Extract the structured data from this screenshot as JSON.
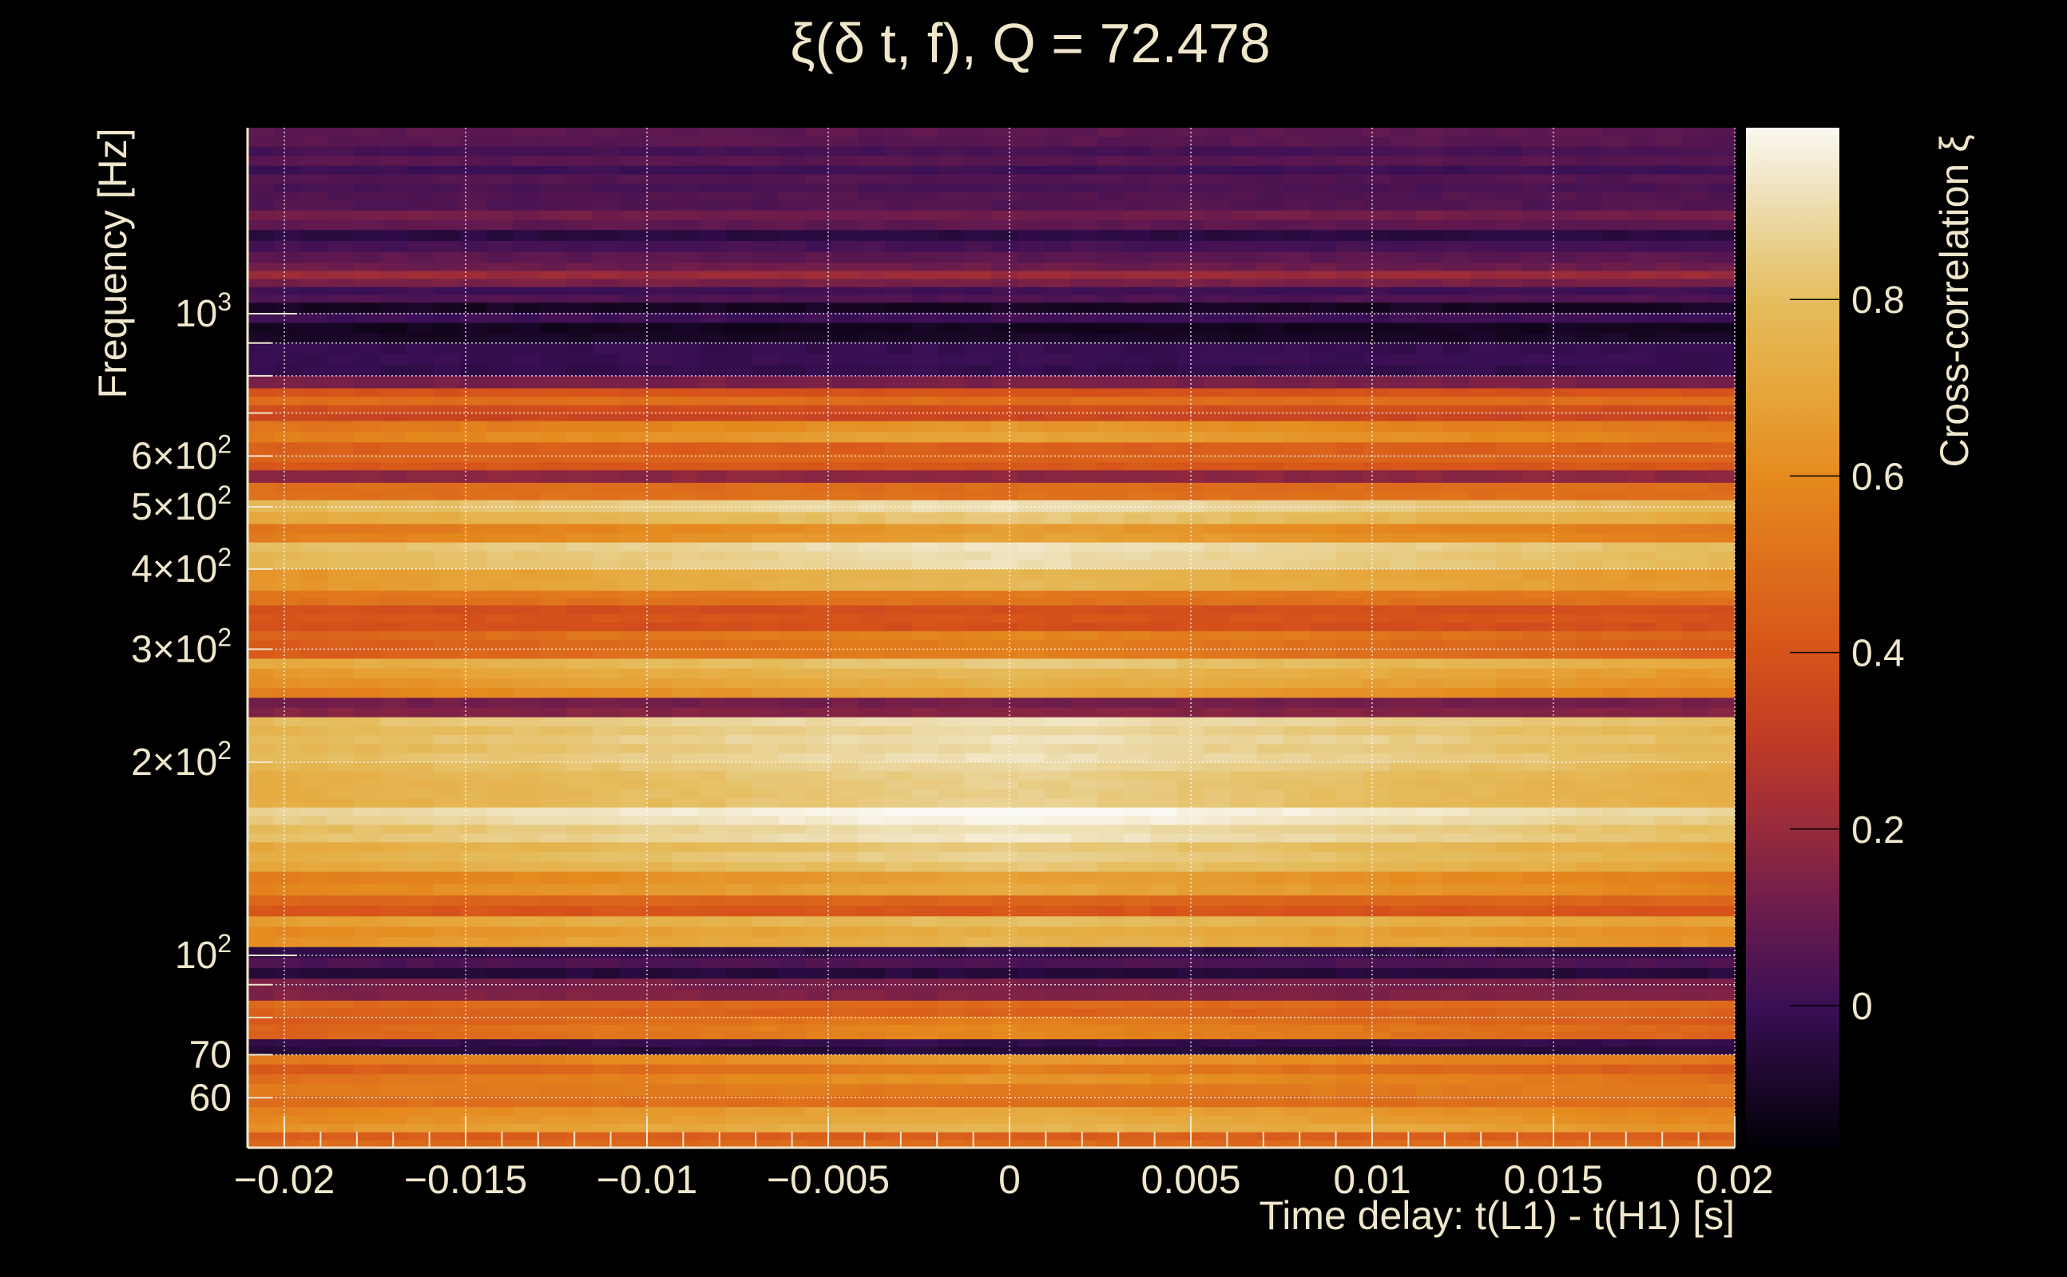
{
  "chart_data": {
    "type": "heatmap",
    "title": "ξ(δ t, f), Q = 72.478",
    "xlabel": "Time delay: t(L1) - t(H1) [s]",
    "ylabel": "Frequency [Hz]",
    "colorbar_label": "Cross-correlation ξ",
    "xlim": [
      -0.021,
      0.02
    ],
    "ylim": [
      50,
      1950
    ],
    "yscale": "log",
    "clim": [
      -0.16,
      1.0
    ],
    "grid": true,
    "x_ticks": [
      {
        "value": -0.02,
        "label": "−0.02"
      },
      {
        "value": -0.015,
        "label": "−0.015"
      },
      {
        "value": -0.01,
        "label": "−0.01"
      },
      {
        "value": -0.005,
        "label": "−0.005"
      },
      {
        "value": 0,
        "label": "0"
      },
      {
        "value": 0.005,
        "label": "0.005"
      },
      {
        "value": 0.01,
        "label": "0.01"
      },
      {
        "value": 0.015,
        "label": "0.015"
      },
      {
        "value": 0.02,
        "label": "0.02"
      }
    ],
    "y_ticks": [
      {
        "value": 1000,
        "mant": "10",
        "exp": "3"
      },
      {
        "value": 600,
        "mant": "6×10",
        "exp": "2"
      },
      {
        "value": 500,
        "mant": "5×10",
        "exp": "2"
      },
      {
        "value": 400,
        "mant": "4×10",
        "exp": "2"
      },
      {
        "value": 300,
        "mant": "3×10",
        "exp": "2"
      },
      {
        "value": 200,
        "mant": "2×10",
        "exp": "2"
      },
      {
        "value": 100,
        "mant": "10",
        "exp": "2"
      },
      {
        "value": 70,
        "mant": "70",
        "exp": ""
      },
      {
        "value": 60,
        "mant": "60",
        "exp": ""
      }
    ],
    "y_grid": [
      1000,
      900,
      800,
      700,
      600,
      500,
      400,
      300,
      200,
      100,
      90,
      80,
      70,
      60
    ],
    "colorbar_ticks": [
      {
        "value": 0.8,
        "label": "0.8"
      },
      {
        "value": 0.6,
        "label": "0.6"
      },
      {
        "value": 0.4,
        "label": "0.4"
      },
      {
        "value": 0.2,
        "label": "0.2"
      },
      {
        "value": 0,
        "label": "0"
      }
    ],
    "bands": [
      [
        1950,
        1700,
        0.08
      ],
      [
        1700,
        1500,
        0.03
      ],
      [
        1500,
        1350,
        0.1
      ],
      [
        1350,
        1200,
        0.02
      ],
      [
        1200,
        1100,
        0.16
      ],
      [
        1100,
        1040,
        0.05
      ],
      [
        1040,
        900,
        -0.05
      ],
      [
        900,
        800,
        0.02
      ],
      [
        800,
        765,
        0.1
      ],
      [
        765,
        720,
        0.45
      ],
      [
        720,
        680,
        0.4
      ],
      [
        680,
        630,
        0.7
      ],
      [
        630,
        604,
        0.5
      ],
      [
        604,
        570,
        0.45
      ],
      [
        570,
        545,
        0.15
      ],
      [
        545,
        512,
        0.55
      ],
      [
        512,
        470,
        0.88
      ],
      [
        470,
        440,
        0.72
      ],
      [
        440,
        400,
        0.9
      ],
      [
        400,
        370,
        0.75
      ],
      [
        370,
        351,
        0.5
      ],
      [
        351,
        320,
        0.42
      ],
      [
        320,
        290,
        0.6
      ],
      [
        290,
        270,
        0.85
      ],
      [
        270,
        252,
        0.75
      ],
      [
        252,
        235,
        0.12
      ],
      [
        235,
        200,
        0.9
      ],
      [
        200,
        170,
        0.93
      ],
      [
        170,
        150,
        0.97
      ],
      [
        150,
        135,
        0.9
      ],
      [
        135,
        124,
        0.75
      ],
      [
        124,
        115,
        0.45
      ],
      [
        115,
        103,
        0.8
      ],
      [
        103,
        92,
        0.0
      ],
      [
        92,
        85,
        0.1
      ],
      [
        85,
        78,
        0.5
      ],
      [
        78,
        74,
        0.55
      ],
      [
        74,
        70,
        -0.05
      ],
      [
        70,
        63,
        0.62
      ],
      [
        63,
        58,
        0.5
      ],
      [
        58,
        53,
        0.72
      ],
      [
        53,
        50,
        0.45
      ]
    ]
  },
  "colors": {
    "text": "#efe6cc",
    "colormap": [
      [
        -0.16,
        "#000004"
      ],
      [
        0,
        "#390f55"
      ],
      [
        0.1,
        "#661a4e"
      ],
      [
        0.2,
        "#962a3c"
      ],
      [
        0.3,
        "#be3a26"
      ],
      [
        0.4,
        "#d6531a"
      ],
      [
        0.6,
        "#e5891e"
      ],
      [
        0.7,
        "#e6a63a"
      ],
      [
        0.8,
        "#e5bc5c"
      ],
      [
        0.9,
        "#ebd9a5"
      ],
      [
        1.0,
        "#faf8f2"
      ]
    ]
  }
}
